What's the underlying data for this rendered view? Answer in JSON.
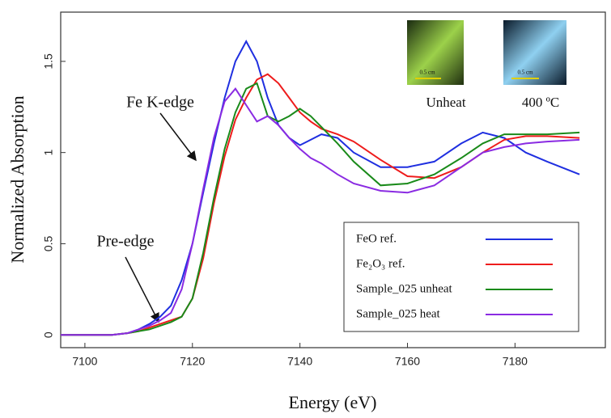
{
  "chart_data": {
    "type": "line",
    "x_label": "Energy (eV)",
    "y_label": "Normalized Absorption",
    "x": [
      7095,
      7105,
      7108,
      7110,
      7112,
      7114,
      7116,
      7118,
      7120,
      7122,
      7124,
      7126,
      7128,
      7130,
      7132,
      7134,
      7136,
      7138,
      7140,
      7142,
      7144,
      7147,
      7150,
      7155,
      7160,
      7165,
      7170,
      7174,
      7178,
      7182,
      7186,
      7192
    ],
    "series": [
      {
        "name": "FeO ref.",
        "color": "#1f2fe0",
        "values": [
          0,
          0,
          0.01,
          0.03,
          0.06,
          0.1,
          0.16,
          0.3,
          0.5,
          0.78,
          1.05,
          1.3,
          1.5,
          1.61,
          1.5,
          1.3,
          1.15,
          1.08,
          1.04,
          1.07,
          1.1,
          1.08,
          1.0,
          0.92,
          0.92,
          0.95,
          1.05,
          1.11,
          1.08,
          1.0,
          0.95,
          0.88
        ]
      },
      {
        "name": "Fe₂O₃ ref.",
        "color": "#ee1c1c",
        "values": [
          0,
          0,
          0.01,
          0.02,
          0.04,
          0.06,
          0.08,
          0.1,
          0.2,
          0.42,
          0.72,
          0.98,
          1.18,
          1.3,
          1.4,
          1.43,
          1.38,
          1.3,
          1.22,
          1.17,
          1.13,
          1.1,
          1.06,
          0.96,
          0.87,
          0.86,
          0.92,
          1.0,
          1.07,
          1.09,
          1.09,
          1.08
        ]
      },
      {
        "name": "Sample_025 unheat",
        "color": "#1a8a1a",
        "values": [
          0,
          0,
          0.01,
          0.02,
          0.03,
          0.05,
          0.07,
          0.1,
          0.2,
          0.45,
          0.75,
          1.02,
          1.22,
          1.35,
          1.38,
          1.2,
          1.17,
          1.2,
          1.24,
          1.2,
          1.14,
          1.05,
          0.95,
          0.82,
          0.83,
          0.88,
          0.97,
          1.05,
          1.1,
          1.1,
          1.1,
          1.11
        ]
      },
      {
        "name": "Sample_025 heat",
        "color": "#8a2be2",
        "values": [
          0,
          0,
          0.01,
          0.03,
          0.05,
          0.08,
          0.12,
          0.25,
          0.5,
          0.8,
          1.08,
          1.28,
          1.35,
          1.26,
          1.17,
          1.2,
          1.15,
          1.08,
          1.02,
          0.97,
          0.94,
          0.88,
          0.83,
          0.79,
          0.78,
          0.82,
          0.92,
          1.0,
          1.03,
          1.05,
          1.06,
          1.07
        ]
      }
    ],
    "xlim": [
      7095.5,
      7196.8
    ],
    "ylim": [
      -0.07,
      1.77
    ],
    "xticks": [
      7100,
      7120,
      7140,
      7160,
      7180
    ],
    "yticks": [
      0,
      0.5,
      1,
      1.5
    ],
    "legend": "lower-right",
    "annotations": [
      "Fe K-edge",
      "Pre-edge",
      "Unheat",
      "400 ºC",
      "0.5 cm",
      "0.5 cm"
    ]
  }
}
